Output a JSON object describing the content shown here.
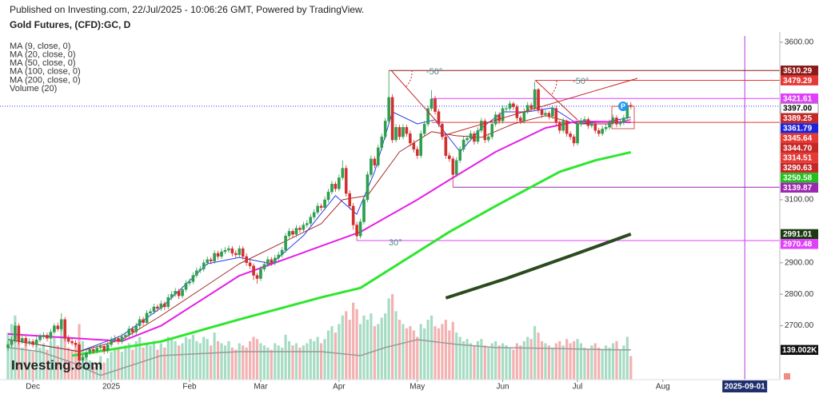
{
  "chart_data": {
    "type": "candlestick",
    "publisher": "Published on Investing.com, 22/Jul/2025 - 10:06:26 GMT, Powered by TradingView.",
    "title": "Gold Futures, (CFD):GC, D",
    "watermark": "Investing.com",
    "marker": "P",
    "angle_labels": [
      "-50°",
      "-50°",
      "30°"
    ],
    "grid": false,
    "colors": {
      "up": "#2e9e4f",
      "down": "#d32f2f",
      "vol_up": "#a6dcc4",
      "vol_down": "#f4b1b1"
    },
    "xlim": [
      -2.25,
      216.85
    ],
    "ylim": [
      2529,
      3620
    ],
    "xticks": [
      {
        "value": 7,
        "label": "Dec"
      },
      {
        "value": 29,
        "label": "2025"
      },
      {
        "value": 51,
        "label": "Feb"
      },
      {
        "value": 71,
        "label": "Mar"
      },
      {
        "value": 93,
        "label": "Apr"
      },
      {
        "value": 115,
        "label": "May"
      },
      {
        "value": 139,
        "label": "Jun"
      },
      {
        "value": 160,
        "label": "Jul"
      },
      {
        "value": 184,
        "label": "Aug"
      }
    ],
    "date_marker": {
      "value": 207,
      "label": "2025-09-01",
      "color": "#b23bd6"
    },
    "yticks": [
      {
        "value": 3600,
        "label": "3600.00"
      },
      {
        "value": 3100,
        "label": "3100.00"
      },
      {
        "value": 2900,
        "label": "2900.00"
      },
      {
        "value": 2800,
        "label": "2800.00"
      },
      {
        "value": 2700,
        "label": "2700.00"
      }
    ],
    "open": [
      2630,
      2640,
      2655,
      2700,
      2650,
      2660,
      2645,
      2650,
      2640,
      2655,
      2665,
      2670,
      2660,
      2680,
      2700,
      2690,
      2720,
      2660,
      2650,
      2645,
      2640,
      2590,
      2600,
      2615,
      2625,
      2620,
      2630,
      2635,
      2620,
      2640,
      2655,
      2660,
      2650,
      2665,
      2670,
      2690,
      2680,
      2700,
      2720,
      2710,
      2740,
      2745,
      2760,
      2755,
      2770,
      2760,
      2790,
      2800,
      2810,
      2795,
      2815,
      2835,
      2840,
      2860,
      2875,
      2880,
      2900,
      2910,
      2905,
      2930,
      2920,
      2935,
      2940,
      2945,
      2930,
      2925,
      2945,
      2920,
      2900,
      2890,
      2860,
      2850,
      2880,
      2895,
      2910,
      2900,
      2915,
      2925,
      2940,
      2985,
      3000,
      2990,
      3010,
      3005,
      3020,
      3025,
      3045,
      3060,
      3080,
      3075,
      3100,
      3125,
      3150,
      3135,
      3170,
      3200,
      3120,
      3080,
      3020,
      2985,
      3030,
      3100,
      3180,
      3230,
      3210,
      3265,
      3300,
      3350,
      3425,
      3290,
      3330,
      3300,
      3330,
      3310,
      3280,
      3260,
      3240,
      3310,
      3340,
      3390,
      3420,
      3380,
      3340,
      3300,
      3240,
      3230,
      3180,
      3225,
      3260,
      3290,
      3295,
      3310,
      3285,
      3320,
      3350,
      3290,
      3300,
      3340,
      3370,
      3350,
      3390,
      3390,
      3405,
      3395,
      3360,
      3350,
      3380,
      3400,
      3390,
      3450,
      3385,
      3370,
      3375,
      3365,
      3390,
      3345,
      3320,
      3350,
      3310,
      3300,
      3280,
      3340,
      3350,
      3355,
      3335,
      3340,
      3320,
      3310,
      3325,
      3330,
      3345,
      3360,
      3340,
      3345,
      3360,
      3400
    ],
    "high": [
      2650,
      2665,
      2712,
      2708,
      2670,
      2668,
      2660,
      2658,
      2665,
      2675,
      2680,
      2678,
      2690,
      2708,
      2710,
      2740,
      2728,
      2670,
      2660,
      2655,
      2648,
      2610,
      2625,
      2632,
      2635,
      2640,
      2645,
      2642,
      2650,
      2665,
      2670,
      2668,
      2675,
      2680,
      2700,
      2698,
      2710,
      2730,
      2728,
      2750,
      2755,
      2770,
      2768,
      2780,
      2778,
      2800,
      2810,
      2820,
      2818,
      2825,
      2845,
      2850,
      2870,
      2885,
      2890,
      2910,
      2920,
      2918,
      2940,
      2938,
      2945,
      2950,
      2955,
      2953,
      2940,
      2955,
      2952,
      2930,
      2910,
      2898,
      2868,
      2890,
      2905,
      2920,
      2918,
      2925,
      2935,
      2950,
      2995,
      3010,
      3008,
      3020,
      3018,
      3030,
      3035,
      3055,
      3070,
      3090,
      3088,
      3110,
      3135,
      3160,
      3158,
      3180,
      3225,
      3210,
      3130,
      3090,
      3030,
      3040,
      3110,
      3190,
      3240,
      3238,
      3275,
      3310,
      3360,
      3510,
      3435,
      3340,
      3338,
      3340,
      3338,
      3320,
      3290,
      3270,
      3320,
      3350,
      3400,
      3448,
      3430,
      3388,
      3348,
      3308,
      3250,
      3238,
      3235,
      3270,
      3300,
      3305,
      3320,
      3318,
      3330,
      3360,
      3358,
      3310,
      3350,
      3380,
      3378,
      3400,
      3400,
      3415,
      3412,
      3402,
      3368,
      3390,
      3410,
      3408,
      3475,
      3455,
      3392,
      3385,
      3382,
      3400,
      3398,
      3352,
      3360,
      3355,
      3318,
      3308,
      3350,
      3360,
      3365,
      3362,
      3350,
      3348,
      3328,
      3335,
      3340,
      3355,
      3370,
      3368,
      3355,
      3370,
      3410,
      3410
    ],
    "low": [
      2620,
      2632,
      2645,
      2640,
      2642,
      2635,
      2637,
      2630,
      2632,
      2647,
      2657,
      2650,
      2652,
      2672,
      2682,
      2682,
      2650,
      2642,
      2637,
      2632,
      2567,
      2580,
      2592,
      2607,
      2610,
      2612,
      2622,
      2610,
      2612,
      2632,
      2647,
      2640,
      2642,
      2657,
      2662,
      2670,
      2672,
      2692,
      2700,
      2702,
      2732,
      2737,
      2745,
      2747,
      2750,
      2752,
      2782,
      2792,
      2785,
      2787,
      2807,
      2827,
      2832,
      2852,
      2867,
      2872,
      2892,
      2895,
      2897,
      2910,
      2912,
      2927,
      2932,
      2920,
      2915,
      2917,
      2910,
      2890,
      2880,
      2845,
      2833,
      2842,
      2872,
      2887,
      2890,
      2892,
      2907,
      2917,
      2932,
      2977,
      2980,
      2982,
      2995,
      2997,
      3012,
      3017,
      3037,
      3052,
      3065,
      3067,
      3092,
      3117,
      3125,
      3127,
      3162,
      3110,
      3070,
      3005,
      2970,
      2977,
      3022,
      3092,
      3172,
      3200,
      3202,
      3257,
      3292,
      3342,
      3280,
      3282,
      3290,
      3292,
      3300,
      3270,
      3250,
      3230,
      3232,
      3302,
      3332,
      3382,
      3370,
      3330,
      3290,
      3230,
      3220,
      3140,
      3172,
      3217,
      3252,
      3282,
      3287,
      3275,
      3277,
      3312,
      3280,
      3282,
      3292,
      3332,
      3340,
      3342,
      3380,
      3382,
      3385,
      3350,
      3340,
      3342,
      3372,
      3380,
      3382,
      3375,
      3360,
      3362,
      3355,
      3357,
      3335,
      3310,
      3312,
      3300,
      3290,
      3270,
      3272,
      3332,
      3342,
      3325,
      3327,
      3310,
      3300,
      3302,
      3317,
      3322,
      3337,
      3330,
      3332,
      3337,
      3352,
      3387
    ],
    "close": [
      2640,
      2655,
      2700,
      2650,
      2660,
      2645,
      2650,
      2640,
      2655,
      2665,
      2670,
      2660,
      2680,
      2700,
      2690,
      2720,
      2660,
      2650,
      2645,
      2640,
      2590,
      2600,
      2615,
      2625,
      2620,
      2630,
      2635,
      2620,
      2640,
      2655,
      2660,
      2650,
      2665,
      2670,
      2690,
      2680,
      2700,
      2720,
      2710,
      2740,
      2745,
      2760,
      2755,
      2770,
      2760,
      2790,
      2800,
      2810,
      2795,
      2815,
      2835,
      2840,
      2860,
      2875,
      2880,
      2900,
      2910,
      2905,
      2930,
      2920,
      2935,
      2940,
      2945,
      2930,
      2925,
      2945,
      2920,
      2900,
      2890,
      2860,
      2850,
      2880,
      2895,
      2910,
      2900,
      2915,
      2925,
      2940,
      2985,
      3000,
      2990,
      3010,
      3005,
      3020,
      3025,
      3045,
      3060,
      3080,
      3075,
      3100,
      3125,
      3150,
      3135,
      3170,
      3200,
      3120,
      3080,
      3020,
      2985,
      3030,
      3100,
      3180,
      3230,
      3210,
      3265,
      3300,
      3350,
      3425,
      3290,
      3330,
      3300,
      3330,
      3310,
      3280,
      3260,
      3240,
      3310,
      3340,
      3390,
      3420,
      3380,
      3340,
      3300,
      3240,
      3230,
      3180,
      3225,
      3260,
      3290,
      3295,
      3310,
      3285,
      3320,
      3350,
      3290,
      3300,
      3340,
      3370,
      3350,
      3390,
      3390,
      3405,
      3395,
      3360,
      3350,
      3380,
      3400,
      3390,
      3450,
      3385,
      3370,
      3375,
      3365,
      3390,
      3345,
      3320,
      3350,
      3310,
      3300,
      3280,
      3340,
      3350,
      3355,
      3335,
      3340,
      3320,
      3310,
      3325,
      3330,
      3345,
      3360,
      3340,
      3345,
      3360,
      3400,
      3397
    ],
    "ma": [
      {
        "name": "MA (9, close, 0)",
        "color": "#2a3cf0",
        "width": 1,
        "x": [
          0,
          20,
          32,
          43,
          56,
          65,
          74,
          83,
          92,
          98,
          103,
          108,
          115,
          120,
          127,
          133,
          139,
          146,
          153,
          160,
          169,
          175
        ],
        "values": [
          2656,
          2618,
          2669,
          2757,
          2897,
          2917,
          2897,
          2986,
          3113,
          3054,
          3189,
          3379,
          3341,
          3354,
          3252,
          3328,
          3379,
          3379,
          3392,
          3341,
          3349,
          3362
        ]
      },
      {
        "name": "MA (20, close, 0)",
        "color": "#a52a2a",
        "width": 1,
        "x": [
          0,
          20,
          32,
          43,
          65,
          88,
          94,
          101,
          110,
          119,
          126,
          133,
          142,
          151,
          160,
          169,
          175
        ],
        "values": [
          2656,
          2618,
          2656,
          2732,
          2897,
          3024,
          3100,
          3113,
          3252,
          3316,
          3303,
          3298,
          3341,
          3367,
          3341,
          3341,
          3354
        ]
      },
      {
        "name": "MA (50, close, 0)",
        "color": "#e61ee6",
        "width": 2,
        "x": [
          0,
          32,
          43,
          65,
          99,
          115,
          124,
          137,
          151,
          160,
          175
        ],
        "values": [
          2674,
          2651,
          2700,
          2859,
          2998,
          3100,
          3163,
          3252,
          3328,
          3349,
          3346
        ]
      },
      {
        "name": "MA (100, close, 0)",
        "color": "#2ee62e",
        "width": 3,
        "x": [
          18,
          43,
          65,
          88,
          99,
          124,
          137,
          155,
          165,
          175
        ],
        "values": [
          2605,
          2650,
          2720,
          2790,
          2820,
          2998,
          3080,
          3189,
          3225,
          3251
        ]
      },
      {
        "name": "MA (200, close, 0)",
        "color": "#2d4a1e",
        "width": 4,
        "x": [
          123,
          140,
          160,
          175
        ],
        "values": [
          2788,
          2850,
          2930,
          2991
        ]
      }
    ],
    "volume": {
      "name": "Volume (20)",
      "ylim": [
        0,
        430
      ],
      "ma_color": "#9a9a9a",
      "values": [
        220,
        260,
        300,
        180,
        150,
        170,
        140,
        130,
        160,
        150,
        170,
        140,
        180,
        200,
        160,
        240,
        230,
        150,
        140,
        170,
        260,
        180,
        120,
        90,
        60,
        70,
        110,
        80,
        100,
        130,
        140,
        150,
        130,
        160,
        170,
        140,
        180,
        200,
        150,
        170,
        160,
        180,
        140,
        170,
        150,
        200,
        190,
        180,
        160,
        170,
        200,
        190,
        210,
        180,
        170,
        200,
        190,
        160,
        220,
        180,
        170,
        160,
        180,
        150,
        140,
        170,
        160,
        150,
        180,
        200,
        190,
        170,
        160,
        150,
        140,
        170,
        160,
        150,
        210,
        180,
        160,
        170,
        150,
        160,
        170,
        190,
        180,
        200,
        170,
        190,
        230,
        250,
        220,
        260,
        300,
        320,
        280,
        360,
        330,
        260,
        300,
        280,
        310,
        250,
        260,
        290,
        310,
        380,
        400,
        320,
        280,
        260,
        240,
        250,
        230,
        200,
        260,
        240,
        280,
        300,
        250,
        240,
        260,
        280,
        230,
        270,
        220,
        200,
        180,
        190,
        170,
        160,
        180,
        190,
        160,
        150,
        170,
        180,
        160,
        170,
        160,
        150,
        140,
        170,
        160,
        180,
        200,
        190,
        250,
        220,
        180,
        170,
        160,
        150,
        170,
        180,
        160,
        190,
        170,
        180,
        190,
        170,
        150,
        140,
        160,
        170,
        150,
        140,
        160,
        150,
        170,
        180,
        140,
        160,
        200,
        110
      ],
      "ma_x": [
        0,
        9,
        18,
        26,
        43,
        65,
        88,
        99,
        106,
        115,
        126,
        137,
        153,
        169,
        175
      ],
      "ma_values": [
        150,
        131,
        80,
        20,
        112,
        131,
        131,
        112,
        150,
        187,
        165,
        150,
        146,
        140,
        139.002
      ],
      "ma_value_label": "139.002K"
    },
    "price_lines": [
      {
        "value": 3510.29,
        "color": "#8b1a1a",
        "start": 107
      },
      {
        "value": 3479.29,
        "color": "#e53935",
        "start": 148
      },
      {
        "value": 3421.61,
        "color": "#e040fb",
        "start": 119
      },
      {
        "value": 3397,
        "label": "3397.00",
        "color": "#ffffff",
        "text_color": "#000000",
        "line_color": "#2a3cf0",
        "dashed": true,
        "start": -2.25
      },
      {
        "value": 3389.25,
        "color": "#c62828"
      },
      {
        "value": 3361.79,
        "color": "#1e22d9"
      },
      {
        "value": 3345.64,
        "color": "#e53935",
        "start": 119
      },
      {
        "value": 3344.7,
        "label": "3344.70",
        "color": "#c62828"
      },
      {
        "value": 3314.51,
        "color": "#e53935"
      },
      {
        "value": 3290.63,
        "color": "#c62828"
      },
      {
        "value": 3250.58,
        "color": "#22c01c"
      },
      {
        "value": 3139.87,
        "color": "#9c27b0",
        "start": 125
      },
      {
        "value": 2991.01,
        "color": "#1b3a12"
      },
      {
        "value": 2970.48,
        "color": "#e040fb",
        "start": 98
      }
    ]
  }
}
